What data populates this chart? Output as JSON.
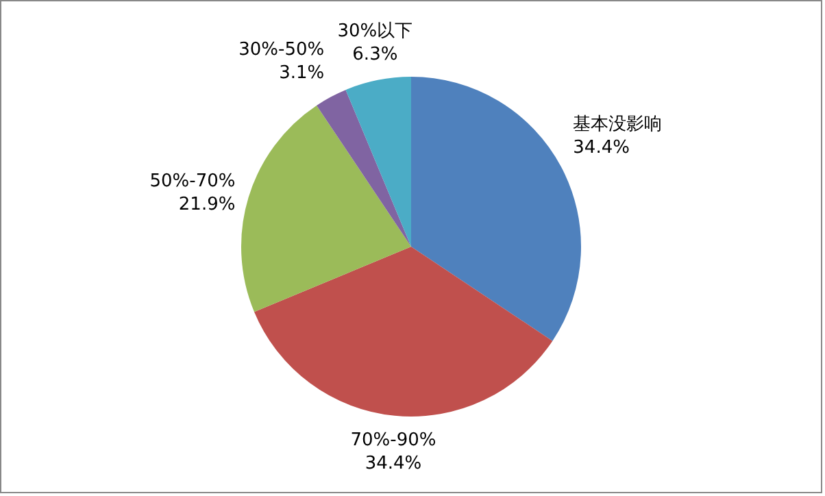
{
  "chart_data": {
    "type": "pie",
    "categories": [
      "基本没影响",
      "70%-90%",
      "50%-70%",
      "30%-50%",
      "30%以下"
    ],
    "values": [
      34.4,
      34.4,
      21.9,
      3.1,
      6.3
    ],
    "value_labels": [
      "34.4%",
      "34.4%",
      "21.9%",
      "3.1%",
      "6.3%"
    ],
    "colors": [
      "#4f81bd",
      "#c0504d",
      "#9bbb59",
      "#8064a2",
      "#4bacc6"
    ],
    "legend": false
  }
}
